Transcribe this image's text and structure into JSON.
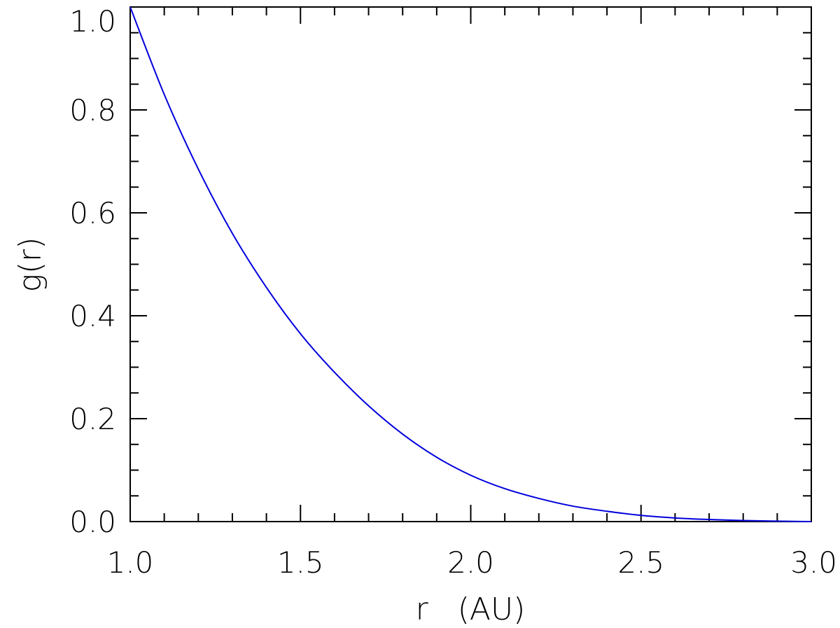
{
  "chart_data": {
    "type": "line",
    "xlabel": "r   (AU)",
    "ylabel": "g(r)",
    "xlim": [
      1.0,
      3.0
    ],
    "ylim": [
      0.0,
      1.0
    ],
    "x_ticks": [
      "1.0",
      "1.5",
      "2.0",
      "2.5",
      "3.0"
    ],
    "y_ticks": [
      "0.0",
      "0.2",
      "0.4",
      "0.6",
      "0.8",
      "1.0"
    ],
    "grid": false,
    "series": [
      {
        "color": "#0000dd",
        "x": [
          1.0,
          1.1,
          1.2,
          1.3,
          1.4,
          1.5,
          1.6,
          1.7,
          1.8,
          1.9,
          2.0,
          2.1,
          2.2,
          2.3,
          2.4,
          2.5,
          2.6,
          2.7,
          2.8,
          2.9,
          3.0
        ],
        "y": [
          1.0,
          0.83,
          0.685,
          0.56,
          0.455,
          0.365,
          0.29,
          0.225,
          0.17,
          0.125,
          0.09,
          0.064,
          0.045,
          0.03,
          0.02,
          0.012,
          0.007,
          0.004,
          0.002,
          0.0008,
          0.0
        ]
      }
    ]
  }
}
